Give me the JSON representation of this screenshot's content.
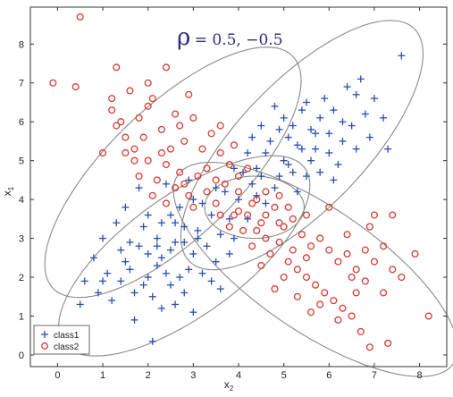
{
  "chart_data": {
    "type": "scatter",
    "title_symbol": "ρ",
    "title_value": "= 0.5, −0.5",
    "xlabel": "x",
    "xlabel_sub": "2",
    "ylabel": "x",
    "ylabel_sub": "1",
    "xlim": [
      -0.6,
      8.6
    ],
    "ylim": [
      -0.3,
      8.95
    ],
    "xticks": [
      0,
      1,
      2,
      3,
      4,
      5,
      6,
      7,
      8
    ],
    "yticks": [
      0,
      1,
      2,
      3,
      4,
      5,
      6,
      7,
      8
    ],
    "grid": false,
    "legend_position": "bottom-left",
    "colors": {
      "class1": "#2a4fb0",
      "class2": "#d83a32",
      "ellipse": "#8a8a8a",
      "axes": "#333333"
    },
    "series": [
      {
        "name": "class1",
        "marker": "plus",
        "points": [
          [
            2.0,
            2.0
          ],
          [
            2.3,
            2.5
          ],
          [
            1.7,
            1.6
          ],
          [
            2.8,
            2.9
          ],
          [
            3.1,
            3.2
          ],
          [
            2.5,
            1.8
          ],
          [
            1.5,
            2.4
          ],
          [
            3.4,
            3.6
          ],
          [
            2.2,
            3.0
          ],
          [
            2.9,
            2.2
          ],
          [
            1.8,
            2.8
          ],
          [
            3.6,
            3.1
          ],
          [
            2.6,
            3.4
          ],
          [
            1.4,
            1.9
          ],
          [
            3.0,
            2.6
          ],
          [
            2.4,
            2.1
          ],
          [
            3.3,
            2.8
          ],
          [
            2.1,
            1.5
          ],
          [
            1.9,
            3.3
          ],
          [
            2.7,
            3.8
          ],
          [
            3.8,
            3.5
          ],
          [
            1.2,
            1.4
          ],
          [
            2.3,
            1.2
          ],
          [
            3.5,
            2.4
          ],
          [
            4.0,
            4.0
          ],
          [
            2.8,
            1.6
          ],
          [
            1.6,
            2.9
          ],
          [
            3.2,
            3.9
          ],
          [
            2.5,
            2.7
          ],
          [
            1.1,
            2.1
          ],
          [
            3.7,
            4.2
          ],
          [
            2.0,
            3.6
          ],
          [
            3.9,
            3.0
          ],
          [
            2.6,
            1.3
          ],
          [
            1.3,
            3.4
          ],
          [
            0.8,
            2.5
          ],
          [
            0.9,
            1.6
          ],
          [
            1.0,
            3.0
          ],
          [
            3.0,
            1.1
          ],
          [
            4.2,
            3.5
          ],
          [
            2.4,
            4.4
          ],
          [
            1.7,
            0.9
          ],
          [
            2.1,
            0.35
          ],
          [
            0.6,
            1.9
          ],
          [
            3.4,
            1.9
          ],
          [
            1.5,
            3.8
          ],
          [
            2.9,
            4.5
          ],
          [
            4.4,
            4.1
          ],
          [
            3.6,
            1.7
          ],
          [
            1.8,
            4.3
          ],
          [
            2.2,
            2.3
          ],
          [
            2.7,
            2.0
          ],
          [
            1.9,
            1.8
          ],
          [
            3.2,
            2.1
          ],
          [
            2.6,
            2.9
          ],
          [
            3.8,
            2.6
          ],
          [
            1.4,
            2.7
          ],
          [
            2.3,
            3.4
          ],
          [
            3.1,
            3.0
          ],
          [
            2.0,
            2.6
          ],
          [
            4.5,
            4.6
          ],
          [
            5.0,
            5.0
          ],
          [
            5.3,
            5.4
          ],
          [
            4.8,
            4.3
          ],
          [
            5.6,
            5.8
          ],
          [
            6.0,
            5.7
          ],
          [
            4.6,
            5.2
          ],
          [
            5.2,
            4.7
          ],
          [
            5.8,
            6.1
          ],
          [
            6.3,
            5.5
          ],
          [
            4.9,
            5.8
          ],
          [
            5.5,
            4.6
          ],
          [
            6.1,
            6.3
          ],
          [
            4.4,
            4.8
          ],
          [
            5.1,
            5.6
          ],
          [
            6.5,
            5.9
          ],
          [
            5.7,
            5.3
          ],
          [
            4.7,
            5.5
          ],
          [
            6.8,
            6.2
          ],
          [
            5.4,
            6.3
          ],
          [
            6.2,
            4.9
          ],
          [
            4.3,
            5.6
          ],
          [
            5.9,
            6.6
          ],
          [
            6.6,
            6.7
          ],
          [
            5.0,
            6.1
          ],
          [
            4.6,
            3.9
          ],
          [
            6.9,
            5.6
          ],
          [
            5.3,
            4.2
          ],
          [
            7.2,
            6.1
          ],
          [
            6.4,
            6.9
          ],
          [
            5.6,
            5.0
          ],
          [
            4.9,
            4.6
          ],
          [
            6.0,
            5.2
          ],
          [
            5.2,
            5.9
          ],
          [
            4.5,
            5.9
          ],
          [
            7.6,
            7.7
          ],
          [
            6.7,
            7.1
          ],
          [
            5.8,
            4.7
          ],
          [
            7.0,
            6.6
          ],
          [
            4.1,
            4.7
          ],
          [
            5.5,
            6.5
          ],
          [
            6.3,
            6.0
          ],
          [
            4.8,
            6.4
          ],
          [
            5.1,
            4.9
          ],
          [
            5.7,
            5.7
          ],
          [
            6.6,
            5.3
          ],
          [
            7.3,
            5.3
          ],
          [
            4.2,
            5.2
          ],
          [
            6.1,
            4.5
          ],
          [
            5.4,
            5.3
          ],
          [
            0.5,
            1.3
          ],
          [
            1.0,
            1.9
          ],
          [
            3.0,
            4.0
          ],
          [
            2.5,
            3.6
          ],
          [
            3.5,
            4.3
          ],
          [
            1.6,
            2.2
          ],
          [
            2.8,
            3.3
          ],
          [
            2.2,
            2.8
          ],
          [
            3.9,
            4.8
          ],
          [
            4.3,
            4.4
          ]
        ]
      },
      {
        "name": "class2",
        "marker": "circle",
        "points": [
          [
            0.5,
            8.7
          ],
          [
            -0.1,
            7.0
          ],
          [
            0.4,
            6.9
          ],
          [
            1.2,
            6.3
          ],
          [
            1.3,
            7.4
          ],
          [
            1.8,
            6.1
          ],
          [
            1.5,
            5.6
          ],
          [
            2.1,
            6.6
          ],
          [
            2.4,
            7.4
          ],
          [
            1.0,
            5.2
          ],
          [
            1.7,
            5.3
          ],
          [
            2.3,
            5.8
          ],
          [
            2.6,
            6.2
          ],
          [
            2.0,
            5.0
          ],
          [
            2.8,
            5.5
          ],
          [
            3.0,
            6.1
          ],
          [
            2.4,
            4.9
          ],
          [
            3.2,
            5.3
          ],
          [
            1.6,
            6.8
          ],
          [
            2.9,
            6.7
          ],
          [
            2.2,
            4.5
          ],
          [
            3.3,
            4.8
          ],
          [
            1.4,
            6.0
          ],
          [
            2.7,
            4.7
          ],
          [
            3.6,
            5.2
          ],
          [
            2.5,
            5.3
          ],
          [
            3.1,
            4.6
          ],
          [
            1.9,
            5.6
          ],
          [
            3.4,
            5.7
          ],
          [
            2.0,
            6.4
          ],
          [
            3.7,
            4.4
          ],
          [
            2.9,
            4.1
          ],
          [
            1.3,
            5.9
          ],
          [
            3.8,
            4.9
          ],
          [
            2.6,
            4.3
          ],
          [
            3.5,
            3.9
          ],
          [
            4.0,
            4.2
          ],
          [
            4.2,
            3.6
          ],
          [
            4.5,
            3.4
          ],
          [
            3.9,
            3.6
          ],
          [
            4.4,
            4.0
          ],
          [
            4.8,
            3.8
          ],
          [
            4.1,
            3.2
          ],
          [
            4.6,
            3.0
          ],
          [
            5.0,
            3.3
          ],
          [
            4.3,
            2.8
          ],
          [
            5.2,
            3.5
          ],
          [
            4.9,
            2.9
          ],
          [
            5.4,
            3.1
          ],
          [
            4.7,
            2.6
          ],
          [
            5.6,
            2.8
          ],
          [
            5.1,
            2.4
          ],
          [
            5.8,
            3.0
          ],
          [
            5.3,
            2.2
          ],
          [
            6.0,
            2.7
          ],
          [
            5.5,
            2.0
          ],
          [
            6.2,
            2.4
          ],
          [
            5.7,
            1.8
          ],
          [
            6.4,
            2.6
          ],
          [
            5.9,
            1.6
          ],
          [
            6.6,
            2.2
          ],
          [
            6.1,
            1.4
          ],
          [
            6.8,
            1.9
          ],
          [
            6.3,
            1.2
          ],
          [
            7.0,
            2.4
          ],
          [
            6.5,
            1.0
          ],
          [
            7.2,
            1.6
          ],
          [
            6.7,
            0.6
          ],
          [
            6.9,
            0.2
          ],
          [
            7.3,
            0.3
          ],
          [
            7.4,
            3.6
          ],
          [
            7.6,
            2.0
          ],
          [
            7.2,
            2.8
          ],
          [
            8.2,
            1.0
          ],
          [
            7.9,
            2.6
          ],
          [
            6.9,
            3.3
          ],
          [
            6.0,
            3.8
          ],
          [
            5.5,
            3.6
          ],
          [
            6.4,
            3.1
          ],
          [
            5.0,
            2.0
          ],
          [
            4.5,
            2.3
          ],
          [
            5.3,
            1.5
          ],
          [
            4.8,
            1.7
          ],
          [
            5.6,
            1.1
          ],
          [
            6.2,
            0.9
          ],
          [
            4.6,
            3.6
          ],
          [
            4.0,
            3.7
          ],
          [
            3.8,
            3.3
          ],
          [
            4.3,
            3.9
          ],
          [
            3.6,
            3.6
          ],
          [
            4.9,
            4.1
          ],
          [
            5.1,
            3.8
          ],
          [
            2.1,
            4.1
          ],
          [
            2.4,
            3.9
          ],
          [
            1.8,
            4.6
          ],
          [
            3.0,
            3.8
          ],
          [
            2.8,
            4.4
          ],
          [
            3.3,
            4.2
          ],
          [
            4.0,
            4.6
          ],
          [
            3.5,
            4.5
          ],
          [
            1.7,
            5.0
          ],
          [
            2.3,
            5.2
          ],
          [
            3.6,
            5.9
          ],
          [
            2.7,
            5.9
          ],
          [
            1.2,
            6.6
          ],
          [
            2.0,
            7.0
          ],
          [
            1.5,
            5.2
          ],
          [
            3.9,
            5.4
          ],
          [
            4.2,
            4.8
          ],
          [
            4.6,
            4.2
          ],
          [
            5.5,
            2.5
          ],
          [
            6.8,
            2.7
          ],
          [
            7.0,
            3.6
          ],
          [
            6.5,
            2.0
          ],
          [
            5.8,
            1.3
          ],
          [
            6.6,
            1.6
          ],
          [
            7.4,
            2.2
          ],
          [
            5.2,
            2.7
          ],
          [
            4.9,
            3.4
          ],
          [
            4.4,
            3.2
          ]
        ]
      }
    ],
    "ellipses": [
      {
        "center": [
          2.55,
          4.7
        ],
        "semi_axes": [
          4.0,
          1.55
        ],
        "angle_deg": 50
      },
      {
        "center": [
          5.7,
          2.2
        ],
        "semi_axes": [
          3.9,
          1.5
        ],
        "angle_deg": -40
      },
      {
        "center": [
          2.8,
          2.55
        ],
        "semi_axes": [
          3.5,
          1.45
        ],
        "angle_deg": 42
      },
      {
        "center": [
          5.4,
          5.4
        ],
        "semi_axes": [
          3.9,
          1.5
        ],
        "angle_deg": 52
      },
      {
        "center": [
          4.35,
          3.8
        ],
        "semi_axes": [
          1.1,
          0.8
        ],
        "angle_deg": 0
      }
    ]
  }
}
